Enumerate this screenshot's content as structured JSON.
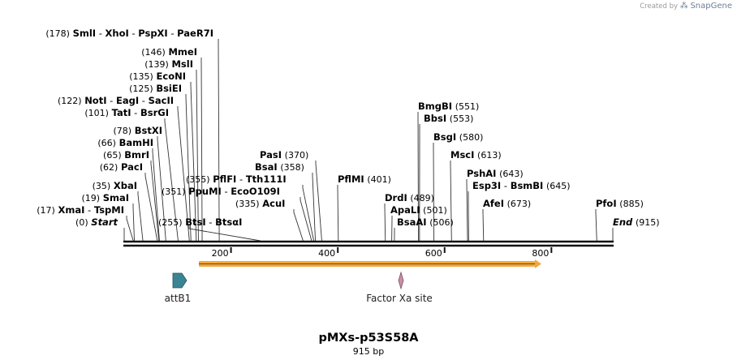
{
  "credit": {
    "prefix": "Created by",
    "brand": "SnapGene"
  },
  "plasmid": {
    "name": "pMXs-p53S58A",
    "length_label": "915 bp",
    "length": 915
  },
  "axis": {
    "ticks": [
      200,
      400,
      600,
      800
    ]
  },
  "sites": [
    {
      "pos": "(178)",
      "names": [
        "SmlI",
        "XhoI",
        "PspXI",
        "PaeR7I"
      ],
      "bp": 178
    },
    {
      "pos": "(146)",
      "names": [
        "MmeI"
      ],
      "bp": 146
    },
    {
      "pos": "(139)",
      "names": [
        "MslI"
      ],
      "bp": 139
    },
    {
      "pos": "(135)",
      "names": [
        "EcoNI"
      ],
      "bp": 135
    },
    {
      "pos": "(125)",
      "names": [
        "BsiEI"
      ],
      "bp": 125
    },
    {
      "pos": "(122)",
      "names": [
        "NotI",
        "EagI",
        "SacII"
      ],
      "bp": 122
    },
    {
      "pos": "(101)",
      "names": [
        "TatI",
        "BsrGI"
      ],
      "bp": 101
    },
    {
      "pos": "(78)",
      "names": [
        "BstXI"
      ],
      "bp": 78
    },
    {
      "pos": "(66)",
      "names": [
        "BamHI"
      ],
      "bp": 66
    },
    {
      "pos": "(65)",
      "names": [
        "BmrI"
      ],
      "bp": 65
    },
    {
      "pos": "(62)",
      "names": [
        "PacI"
      ],
      "bp": 62
    },
    {
      "pos": "(35)",
      "names": [
        "XbaI"
      ],
      "bp": 35
    },
    {
      "pos": "(19)",
      "names": [
        "SmaI"
      ],
      "bp": 19
    },
    {
      "pos": "(17)",
      "names": [
        "XmaI",
        "TspMI"
      ],
      "bp": 17
    },
    {
      "pos": "(0)",
      "names": [
        "Start"
      ],
      "bp": 0,
      "italic": true
    },
    {
      "pos": "(255)",
      "names": [
        "BtsI",
        "BtsαI"
      ],
      "bp": 255
    },
    {
      "pos": "(370)",
      "names": [
        "PasI"
      ],
      "bp": 370
    },
    {
      "pos": "(358)",
      "names": [
        "BsaI"
      ],
      "bp": 358
    },
    {
      "pos": "(355)",
      "names": [
        "PflFI",
        "Tth111I"
      ],
      "bp": 355
    },
    {
      "pos": "(351)",
      "names": [
        "PpuMI",
        "EcoO109I"
      ],
      "bp": 351
    },
    {
      "pos": "(335)",
      "names": [
        "AcuI"
      ],
      "bp": 335
    },
    {
      "pos": "(401)",
      "names": [
        "PflMI"
      ],
      "bp": 401
    },
    {
      "pos": "(489)",
      "names": [
        "DrdI"
      ],
      "bp": 489
    },
    {
      "pos": "(501)",
      "names": [
        "ApaLI"
      ],
      "bp": 501
    },
    {
      "pos": "(506)",
      "names": [
        "BsaAI"
      ],
      "bp": 506
    },
    {
      "pos": "(551)",
      "names": [
        "BmgBI"
      ],
      "bp": 551
    },
    {
      "pos": "(553)",
      "names": [
        "BbsI"
      ],
      "bp": 553
    },
    {
      "pos": "(580)",
      "names": [
        "BsgI"
      ],
      "bp": 580
    },
    {
      "pos": "(613)",
      "names": [
        "MscI"
      ],
      "bp": 613
    },
    {
      "pos": "(643)",
      "names": [
        "PshAI"
      ],
      "bp": 643
    },
    {
      "pos": "(645)",
      "names": [
        "Esp3I",
        "BsmBI"
      ],
      "bp": 645
    },
    {
      "pos": "(673)",
      "names": [
        "AfeI"
      ],
      "bp": 673
    },
    {
      "pos": "(885)",
      "names": [
        "PfoI"
      ],
      "bp": 885
    },
    {
      "pos": "(915)",
      "names": [
        "End"
      ],
      "bp": 915,
      "italic": true
    }
  ],
  "features": [
    {
      "name": "attB1",
      "color": "#3b8494"
    },
    {
      "name": "Factor Xa site",
      "color": "#c890a8"
    }
  ],
  "orf_color": "#f2a73b"
}
